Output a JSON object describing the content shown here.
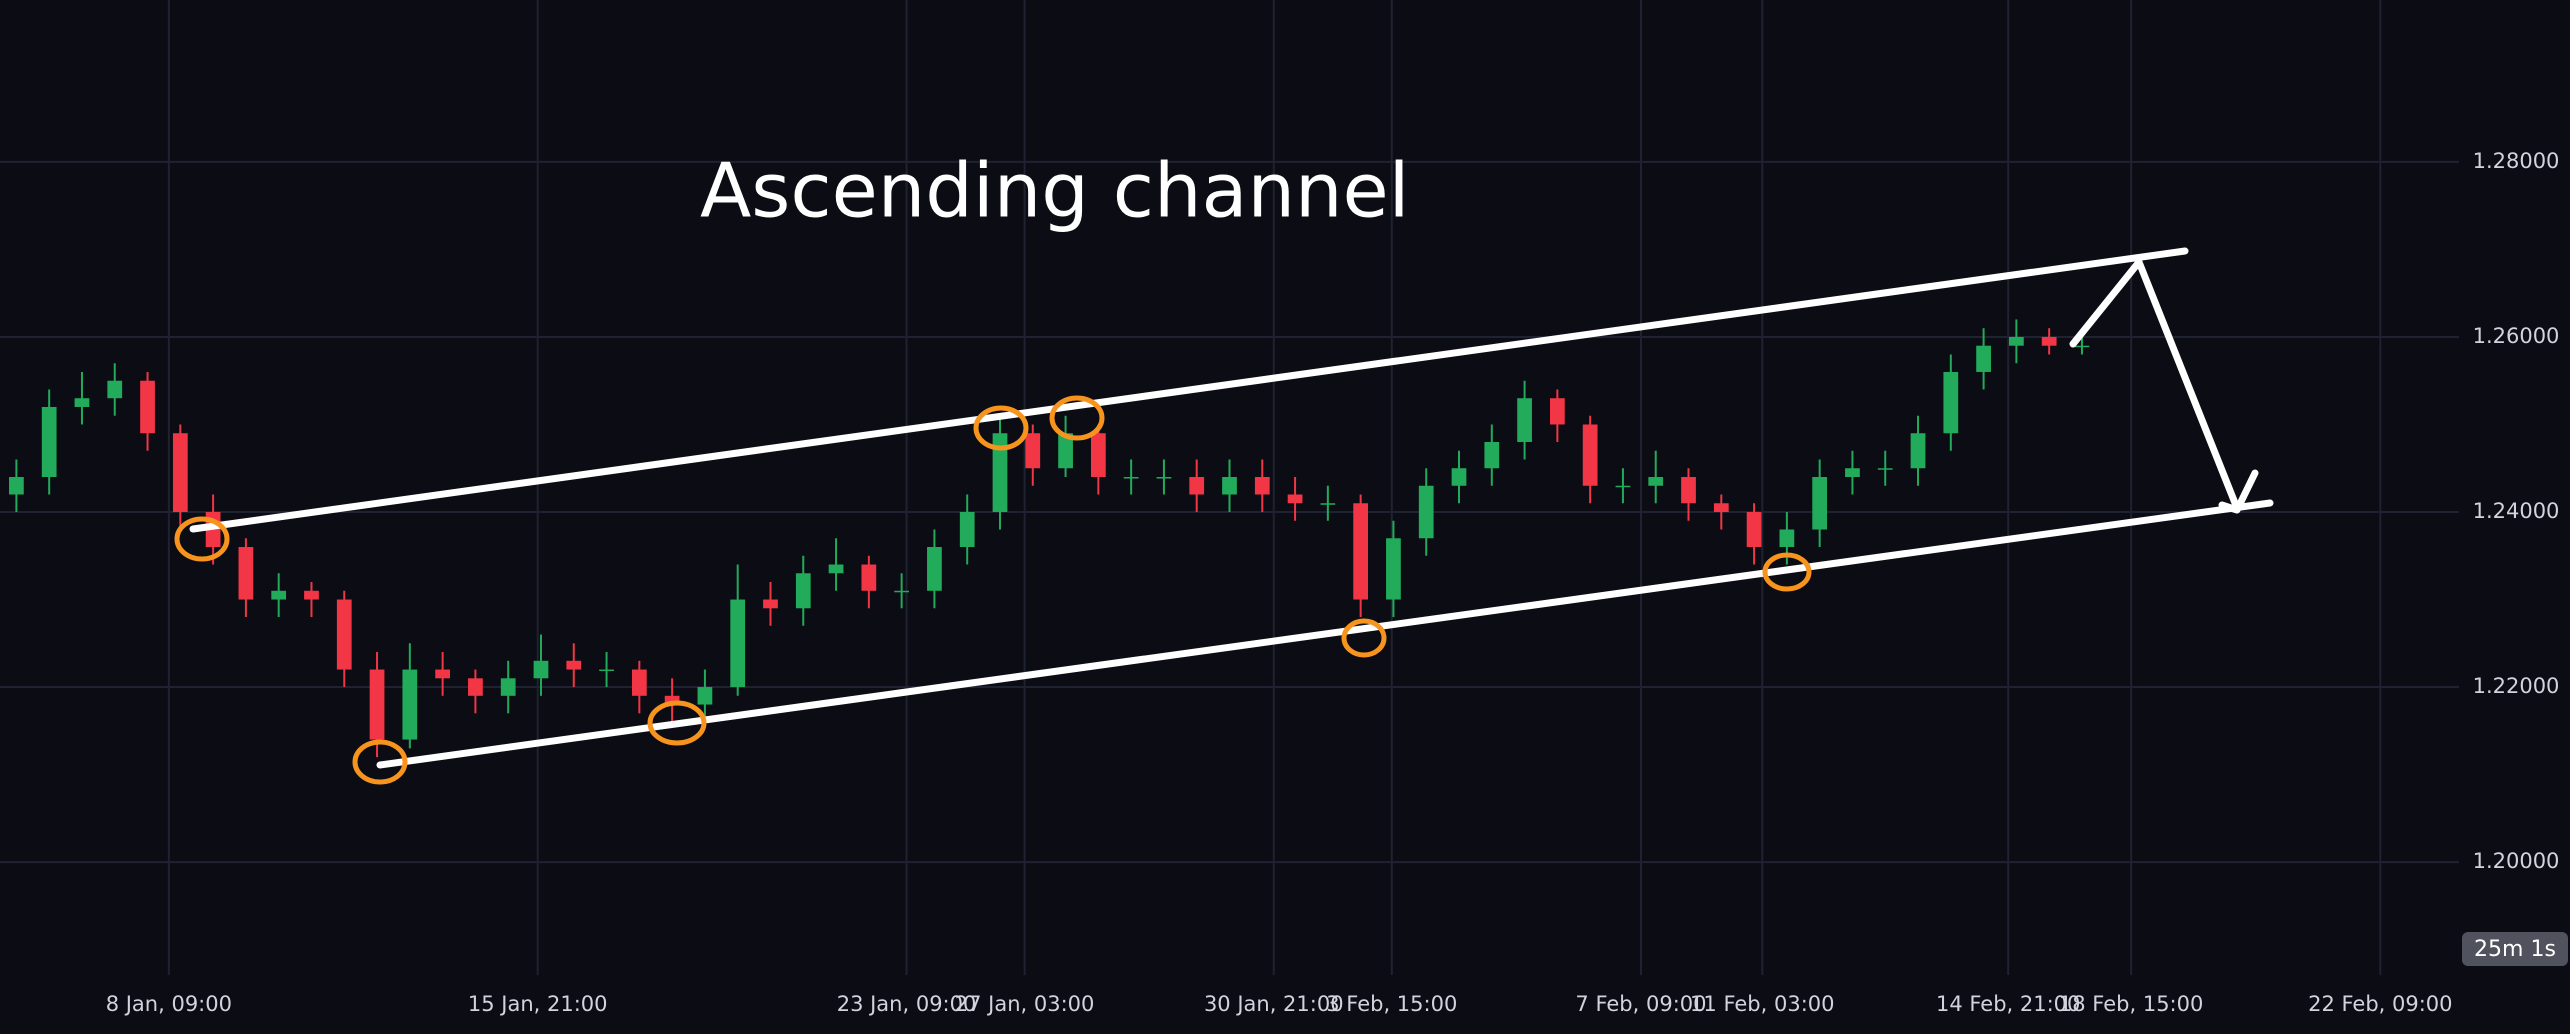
{
  "chart_data": {
    "type": "candlestick",
    "title": "Ascending channel",
    "countdown_label": "25m 1s",
    "up_color": "#22ab5a",
    "down_color": "#f23645",
    "xlim": [
      -0.5,
      74.5
    ],
    "xticks": [
      {
        "value": 4.65,
        "label": "8 Jan, 09:00"
      },
      {
        "value": 15.9,
        "label": "15 Jan, 21:00"
      },
      {
        "value": 27.15,
        "label": "23 Jan, 09:00"
      },
      {
        "value": 30.75,
        "label": "27 Jan, 03:00"
      },
      {
        "value": 38.35,
        "label": "30 Jan, 21:00"
      },
      {
        "value": 41.95,
        "label": "3 Feb, 15:00"
      },
      {
        "value": 49.55,
        "label": "7 Feb, 09:00"
      },
      {
        "value": 53.25,
        "label": "11 Feb, 03:00"
      },
      {
        "value": 60.75,
        "label": "14 Feb, 21:00"
      },
      {
        "value": 64.5,
        "label": "18 Feb, 15:00"
      },
      {
        "value": 72.1,
        "label": "22 Feb, 09:00"
      }
    ],
    "ylim": [
      1.1871,
      1.2985
    ],
    "yticks": [
      {
        "value": 1.2,
        "label": "1.20000"
      },
      {
        "value": 1.22,
        "label": "1.22000"
      },
      {
        "value": 1.24,
        "label": "1.24000"
      },
      {
        "value": 1.26,
        "label": "1.26000"
      },
      {
        "value": 1.28,
        "label": "1.28000"
      }
    ],
    "grid": true,
    "open": [
      1.242,
      1.244,
      1.252,
      1.253,
      1.255,
      1.249,
      1.24,
      1.236,
      1.23,
      1.231,
      1.23,
      1.222,
      1.214,
      1.222,
      1.221,
      1.219,
      1.221,
      1.223,
      1.222,
      1.222,
      1.219,
      1.218,
      1.22,
      1.23,
      1.229,
      1.233,
      1.234,
      1.231,
      1.231,
      1.236,
      1.24,
      1.249,
      1.245,
      1.249,
      1.244,
      1.244,
      1.244,
      1.242,
      1.244,
      1.242,
      1.241,
      1.241,
      1.23,
      1.237,
      1.243,
      1.245,
      1.248,
      1.253,
      1.25,
      1.243,
      1.243,
      1.244,
      1.241,
      1.24,
      1.236,
      1.238,
      1.244,
      1.245,
      1.245,
      1.249,
      1.256,
      1.259,
      1.26,
      1.259
    ],
    "close": [
      1.244,
      1.252,
      1.253,
      1.255,
      1.249,
      1.24,
      1.236,
      1.23,
      1.231,
      1.23,
      1.222,
      1.214,
      1.222,
      1.221,
      1.219,
      1.221,
      1.223,
      1.222,
      1.222,
      1.219,
      1.218,
      1.22,
      1.23,
      1.229,
      1.233,
      1.234,
      1.231,
      1.231,
      1.236,
      1.24,
      1.249,
      1.245,
      1.249,
      1.244,
      1.244,
      1.244,
      1.242,
      1.244,
      1.242,
      1.241,
      1.241,
      1.23,
      1.237,
      1.243,
      1.245,
      1.248,
      1.253,
      1.25,
      1.243,
      1.243,
      1.244,
      1.241,
      1.24,
      1.236,
      1.238,
      1.244,
      1.245,
      1.245,
      1.249,
      1.256,
      1.259,
      1.26,
      1.259,
      1.259
    ],
    "high": [
      1.246,
      1.254,
      1.256,
      1.257,
      1.256,
      1.25,
      1.242,
      1.237,
      1.233,
      1.232,
      1.231,
      1.224,
      1.225,
      1.224,
      1.222,
      1.223,
      1.226,
      1.225,
      1.224,
      1.223,
      1.221,
      1.222,
      1.234,
      1.232,
      1.235,
      1.237,
      1.235,
      1.233,
      1.238,
      1.242,
      1.251,
      1.25,
      1.251,
      1.25,
      1.246,
      1.246,
      1.246,
      1.246,
      1.246,
      1.244,
      1.243,
      1.242,
      1.239,
      1.245,
      1.247,
      1.25,
      1.255,
      1.254,
      1.251,
      1.245,
      1.247,
      1.245,
      1.242,
      1.241,
      1.24,
      1.246,
      1.247,
      1.247,
      1.251,
      1.258,
      1.261,
      1.262,
      1.261,
      1.26
    ],
    "low": [
      1.24,
      1.242,
      1.25,
      1.251,
      1.247,
      1.238,
      1.234,
      1.228,
      1.228,
      1.228,
      1.22,
      1.212,
      1.213,
      1.219,
      1.217,
      1.217,
      1.219,
      1.22,
      1.22,
      1.217,
      1.216,
      1.216,
      1.219,
      1.227,
      1.227,
      1.231,
      1.229,
      1.229,
      1.229,
      1.234,
      1.238,
      1.243,
      1.244,
      1.242,
      1.242,
      1.242,
      1.24,
      1.24,
      1.24,
      1.239,
      1.239,
      1.228,
      1.228,
      1.235,
      1.241,
      1.243,
      1.246,
      1.248,
      1.241,
      1.241,
      1.241,
      1.239,
      1.238,
      1.234,
      1.234,
      1.236,
      1.242,
      1.243,
      1.243,
      1.247,
      1.254,
      1.257,
      1.258,
      1.258
    ]
  }
}
